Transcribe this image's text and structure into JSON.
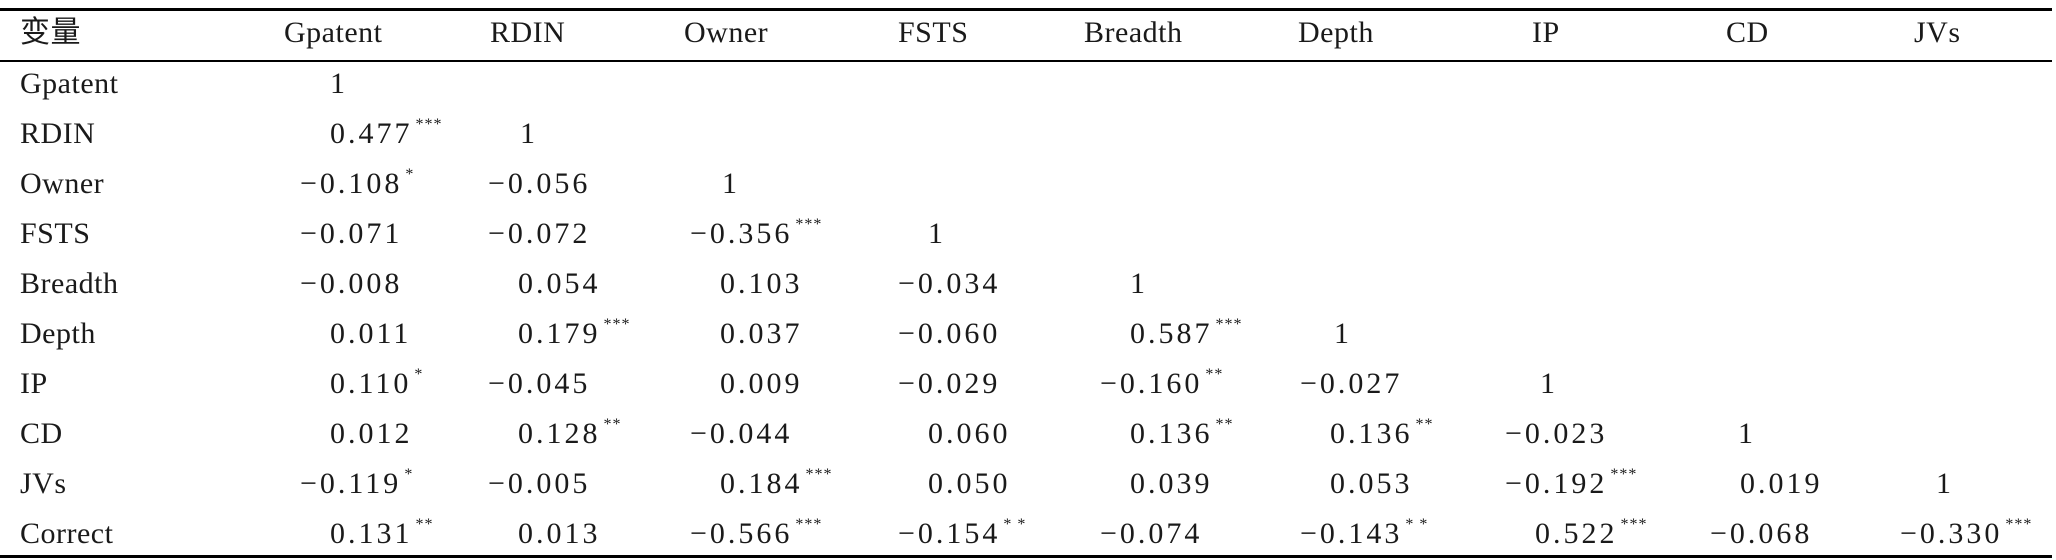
{
  "header": {
    "row_label": "变量",
    "columns": [
      "Gpatent",
      "RDIN",
      "Owner",
      "FSTS",
      "Breadth",
      "Depth",
      "IP",
      "CD",
      "JVs"
    ]
  },
  "rows": [
    {
      "label": "Gpatent",
      "values": [
        [
          "1",
          ""
        ]
      ]
    },
    {
      "label": "RDIN",
      "values": [
        [
          "0.477",
          "***"
        ],
        [
          "1",
          ""
        ]
      ]
    },
    {
      "label": "Owner",
      "values": [
        [
          "−0.108",
          "*"
        ],
        [
          "−0.056",
          ""
        ],
        [
          "1",
          ""
        ]
      ]
    },
    {
      "label": "FSTS",
      "values": [
        [
          "−0.071",
          ""
        ],
        [
          "−0.072",
          ""
        ],
        [
          "−0.356",
          "***"
        ],
        [
          "1",
          ""
        ]
      ]
    },
    {
      "label": "Breadth",
      "values": [
        [
          "−0.008",
          ""
        ],
        [
          "0.054",
          ""
        ],
        [
          "0.103",
          ""
        ],
        [
          "−0.034",
          ""
        ],
        [
          "1",
          ""
        ]
      ]
    },
    {
      "label": "Depth",
      "values": [
        [
          "0.011",
          ""
        ],
        [
          "0.179",
          "***"
        ],
        [
          "0.037",
          ""
        ],
        [
          "−0.060",
          ""
        ],
        [
          "0.587",
          "***"
        ],
        [
          "1",
          ""
        ]
      ]
    },
    {
      "label": "IP",
      "values": [
        [
          "0.110",
          "*"
        ],
        [
          "−0.045",
          ""
        ],
        [
          "0.009",
          ""
        ],
        [
          "−0.029",
          ""
        ],
        [
          "−0.160",
          "**"
        ],
        [
          "−0.027",
          ""
        ],
        [
          "1",
          ""
        ]
      ]
    },
    {
      "label": "CD",
      "values": [
        [
          "0.012",
          ""
        ],
        [
          "0.128",
          "**"
        ],
        [
          "−0.044",
          ""
        ],
        [
          "0.060",
          ""
        ],
        [
          "0.136",
          "**"
        ],
        [
          "0.136",
          "**"
        ],
        [
          "−0.023",
          ""
        ],
        [
          "1",
          ""
        ]
      ]
    },
    {
      "label": "JVs",
      "values": [
        [
          "−0.119",
          "*"
        ],
        [
          "−0.005",
          ""
        ],
        [
          "0.184",
          "***"
        ],
        [
          "0.050",
          ""
        ],
        [
          "0.039",
          ""
        ],
        [
          "0.053",
          ""
        ],
        [
          "−0.192",
          "***"
        ],
        [
          "0.019",
          ""
        ],
        [
          "1",
          ""
        ]
      ]
    },
    {
      "label": "Correct",
      "values": [
        [
          "0.131",
          "**"
        ],
        [
          "0.013",
          ""
        ],
        [
          "−0.566",
          "***"
        ],
        [
          "−0.154",
          "* *"
        ],
        [
          "−0.074",
          ""
        ],
        [
          "−0.143",
          "* *"
        ],
        [
          "0.522",
          "***"
        ],
        [
          "−0.068",
          ""
        ],
        [
          "−0.330",
          "***"
        ]
      ]
    }
  ]
}
